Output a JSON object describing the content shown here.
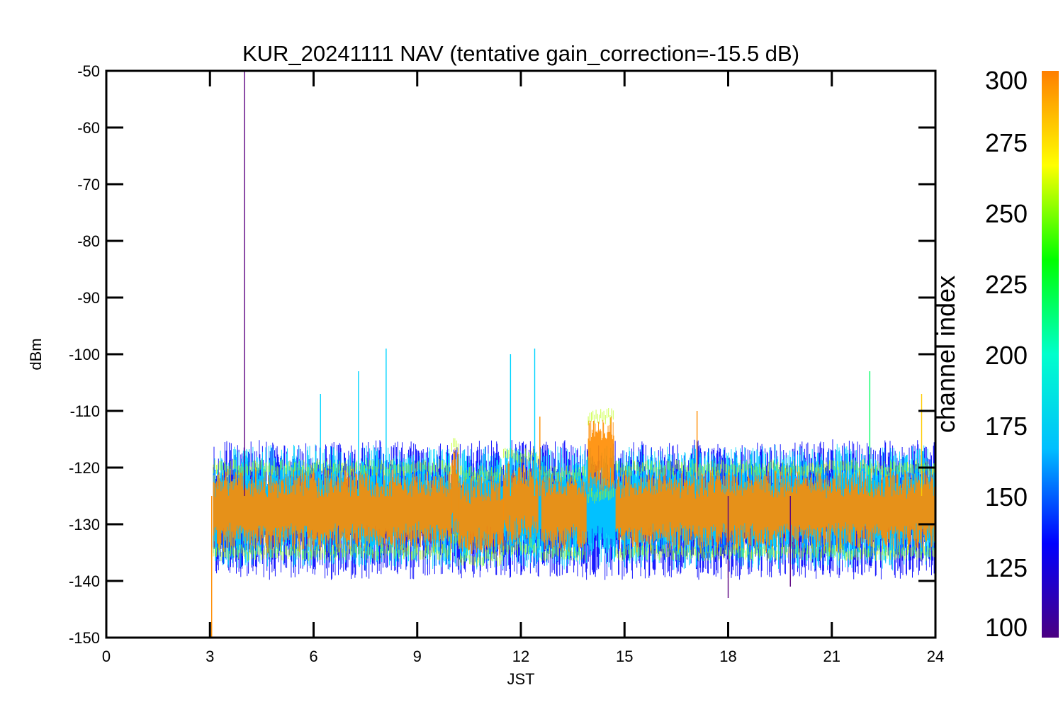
{
  "chart_data": {
    "type": "line",
    "title": "KUR_20241111 NAV (tentative gain_correction=-15.5 dB)",
    "xlabel": "JST",
    "ylabel": "dBm",
    "xlim": [
      0,
      24
    ],
    "ylim": [
      -150,
      -50
    ],
    "x_ticks": [
      0,
      3,
      6,
      9,
      12,
      15,
      18,
      21,
      24
    ],
    "x_tick_labels": [
      "0",
      "3",
      "6",
      "9",
      "12",
      "15",
      "18",
      "21",
      "24"
    ],
    "y_ticks": [
      -50,
      -60,
      -70,
      -80,
      -90,
      -100,
      -110,
      -120,
      -130,
      -140,
      -150
    ],
    "y_tick_labels": [
      "-50",
      "-60",
      "-70",
      "-80",
      "-90",
      "-100",
      "-110",
      "-120",
      "-130",
      "-140",
      "-150"
    ],
    "colorbar": {
      "label": "channel index",
      "range": [
        100,
        300
      ],
      "ticks": [
        300,
        275,
        250,
        225,
        200,
        175,
        150,
        125,
        100
      ],
      "tick_labels": [
        "300",
        "275",
        "250",
        "225",
        "200",
        "175",
        "150",
        "125",
        "100"
      ],
      "colormap": "rainbow",
      "stops": [
        "#4b0082",
        "#0000ff",
        "#00bfff",
        "#00ffcc",
        "#00ff00",
        "#ffff00",
        "#ff7f00"
      ]
    },
    "data_start_jst": 3.1,
    "series": [
      {
        "channel_index": 290,
        "color": "#ff8c00",
        "role": "dense band (top layer)",
        "segments": [
          {
            "x": [
              3.1,
              10.0
            ],
            "y_low": -134,
            "y_high": -121
          },
          {
            "x": [
              10.0,
              10.2
            ],
            "y_low": -132,
            "y_high": -117
          },
          {
            "x": [
              10.2,
              11.5
            ],
            "y_low": -135,
            "y_high": -122
          },
          {
            "x": [
              11.5,
              12.5
            ],
            "y_low": -133,
            "y_high": -119
          },
          {
            "x": [
              12.6,
              13.9
            ],
            "y_low": -134,
            "y_high": -122
          },
          {
            "x": [
              13.95,
              14.7
            ],
            "y_low": -124,
            "y_high": -112
          },
          {
            "x": [
              14.75,
              24.0
            ],
            "y_low": -134,
            "y_high": -121
          }
        ]
      },
      {
        "channel_index": 175,
        "color": "#00d4ff",
        "role": "upper envelope",
        "segments": [
          {
            "x": [
              3.1,
              24.0
            ],
            "y_low": -137,
            "y_high": -117
          }
        ]
      },
      {
        "channel_index": 140,
        "color": "#0000ff",
        "role": "outer envelope",
        "segments": [
          {
            "x": [
              3.1,
              24.0
            ],
            "y_low": -139,
            "y_high": -116
          }
        ]
      }
    ],
    "spikes": [
      {
        "x": 4.0,
        "y": -50,
        "color": "#5a0080"
      },
      {
        "x": 3.05,
        "y": -150,
        "color": "#ff8c00"
      },
      {
        "x": 6.2,
        "y": -107,
        "color": "#00d4ff"
      },
      {
        "x": 7.3,
        "y": -103,
        "color": "#00d4ff"
      },
      {
        "x": 8.1,
        "y": -99,
        "color": "#00d4ff"
      },
      {
        "x": 11.7,
        "y": -100,
        "color": "#00d4ff"
      },
      {
        "x": 12.4,
        "y": -99,
        "color": "#00d4ff"
      },
      {
        "x": 12.55,
        "y": -111,
        "color": "#ff8c00"
      },
      {
        "x": 17.1,
        "y": -110,
        "color": "#ff8c00"
      },
      {
        "x": 22.1,
        "y": -103,
        "color": "#00ff66"
      },
      {
        "x": 23.6,
        "y": -107,
        "color": "#ffcc00"
      },
      {
        "x": 18.0,
        "y": -143,
        "color": "#5a0080"
      },
      {
        "x": 19.8,
        "y": -141,
        "color": "#5a0080"
      }
    ]
  }
}
